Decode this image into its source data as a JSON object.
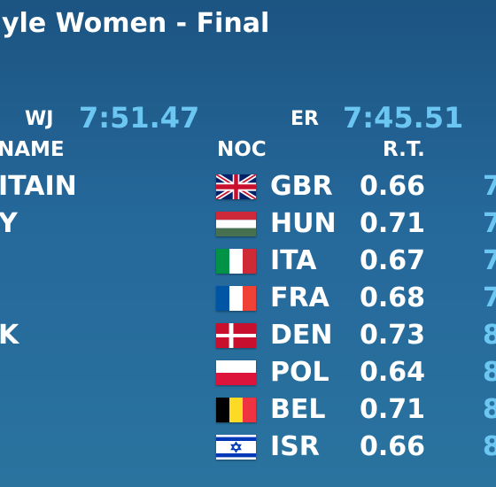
{
  "header": {
    "title": "yle Women - Final"
  },
  "records": [
    {
      "label": "WJ",
      "time": "7:51.47"
    },
    {
      "label": "ER",
      "time": "7:45.51"
    }
  ],
  "columns": {
    "name": "NAME",
    "noc": "NOC",
    "rt": "R.T."
  },
  "rows": [
    {
      "name": "ITAIN",
      "noc": "GBR",
      "rt": "0.66",
      "time": "7"
    },
    {
      "name": "Y",
      "noc": "HUN",
      "rt": "0.71",
      "time": "7"
    },
    {
      "noc": "ITA",
      "rt": "0.67",
      "time": "7"
    },
    {
      "noc": "FRA",
      "rt": "0.68",
      "time": "7"
    },
    {
      "name": "K",
      "noc": "DEN",
      "rt": "0.73",
      "time": "8"
    },
    {
      "noc": "POL",
      "rt": "0.64",
      "time": "8"
    },
    {
      "noc": "BEL",
      "rt": "0.71",
      "time": "8"
    },
    {
      "noc": "ISR",
      "rt": "0.66",
      "time": "8"
    }
  ]
}
